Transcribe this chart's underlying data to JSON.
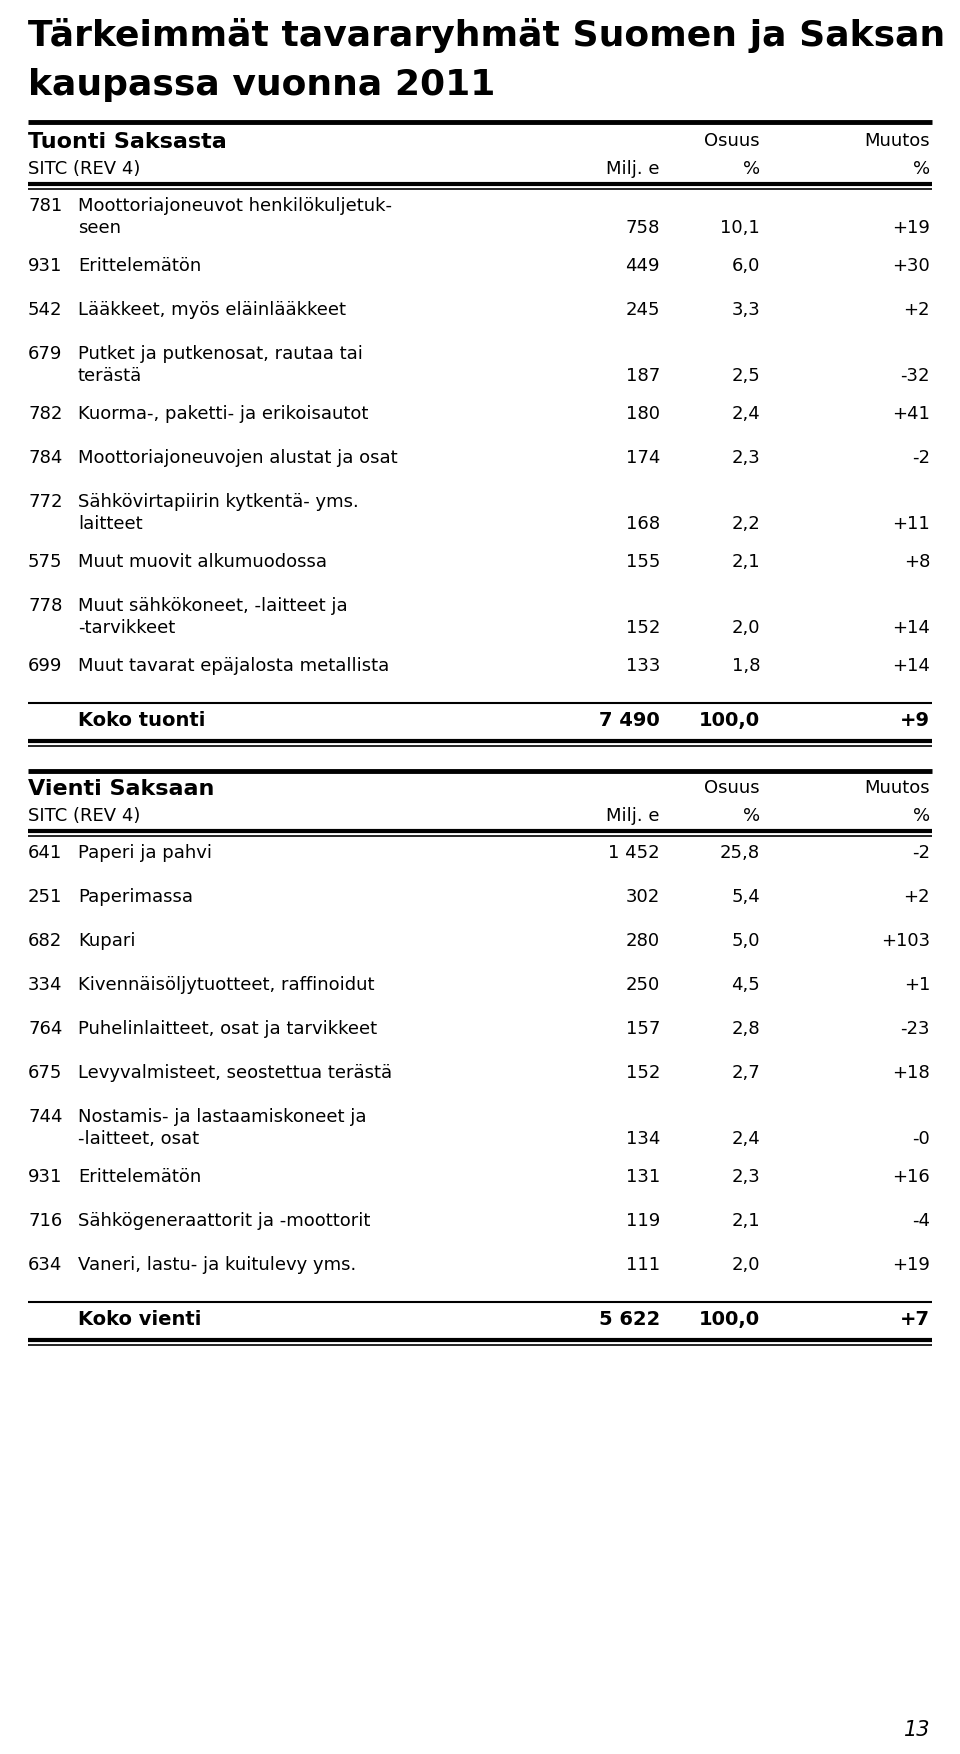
{
  "title_line1": "Tärkeimmät tavararyhmät Suomen ja Saksan",
  "title_line2": "kaupassa vuonna 2011",
  "section1_header": "Tuonti Saksasta",
  "section1_subheader": "SITC (REV 4)",
  "import_rows": [
    {
      "code": "781",
      "desc_line1": "Moottoriajoneuvot henkilökuljetuk-",
      "desc_line2": "seen",
      "val": "758",
      "pct": "10,1",
      "chg": "+19"
    },
    {
      "code": "931",
      "desc_line1": "Erittelemätön",
      "desc_line2": null,
      "val": "449",
      "pct": "6,0",
      "chg": "+30"
    },
    {
      "code": "542",
      "desc_line1": "Lääkkeet, myös eläinlääkkeet",
      "desc_line2": null,
      "val": "245",
      "pct": "3,3",
      "chg": "+2"
    },
    {
      "code": "679",
      "desc_line1": "Putket ja putkenosat, rautaa tai",
      "desc_line2": "terästä",
      "val": "187",
      "pct": "2,5",
      "chg": "-32"
    },
    {
      "code": "782",
      "desc_line1": "Kuorma-, paketti- ja erikoisautot",
      "desc_line2": null,
      "val": "180",
      "pct": "2,4",
      "chg": "+41"
    },
    {
      "code": "784",
      "desc_line1": "Moottoriajoneuvojen alustat ja osat",
      "desc_line2": null,
      "val": "174",
      "pct": "2,3",
      "chg": "-2"
    },
    {
      "code": "772",
      "desc_line1": "Sähkövirtapiirin kytkentä- yms.",
      "desc_line2": "laitteet",
      "val": "168",
      "pct": "2,2",
      "chg": "+11"
    },
    {
      "code": "575",
      "desc_line1": "Muut muovit alkumuodossa",
      "desc_line2": null,
      "val": "155",
      "pct": "2,1",
      "chg": "+8"
    },
    {
      "code": "778",
      "desc_line1": "Muut sähkökoneet, -laitteet ja",
      "desc_line2": "-tarvikkeet",
      "val": "152",
      "pct": "2,0",
      "chg": "+14"
    },
    {
      "code": "699",
      "desc_line1": "Muut tavarat epäjalosta metallista",
      "desc_line2": null,
      "val": "133",
      "pct": "1,8",
      "chg": "+14"
    }
  ],
  "import_total_label": "Koko tuonti",
  "import_total_val": "7 490",
  "import_total_pct": "100,0",
  "import_total_chg": "+9",
  "section2_header": "Vienti Saksaan",
  "section2_subheader": "SITC (REV 4)",
  "export_rows": [
    {
      "code": "641",
      "desc_line1": "Paperi ja pahvi",
      "desc_line2": null,
      "val": "1 452",
      "pct": "25,8",
      "chg": "-2"
    },
    {
      "code": "251",
      "desc_line1": "Paperimassa",
      "desc_line2": null,
      "val": "302",
      "pct": "5,4",
      "chg": "+2"
    },
    {
      "code": "682",
      "desc_line1": "Kupari",
      "desc_line2": null,
      "val": "280",
      "pct": "5,0",
      "chg": "+103"
    },
    {
      "code": "334",
      "desc_line1": "Kivennäisöljytuotteet, raffinoidut",
      "desc_line2": null,
      "val": "250",
      "pct": "4,5",
      "chg": "+1"
    },
    {
      "code": "764",
      "desc_line1": "Puhelinlaitteet, osat ja tarvikkeet",
      "desc_line2": null,
      "val": "157",
      "pct": "2,8",
      "chg": "-23"
    },
    {
      "code": "675",
      "desc_line1": "Levyvalmisteet, seostettua terästä",
      "desc_line2": null,
      "val": "152",
      "pct": "2,7",
      "chg": "+18"
    },
    {
      "code": "744",
      "desc_line1": "Nostamis- ja lastaamiskoneet ja",
      "desc_line2": "-laitteet, osat",
      "val": "134",
      "pct": "2,4",
      "chg": "-0"
    },
    {
      "code": "931",
      "desc_line1": "Erittelemätön",
      "desc_line2": null,
      "val": "131",
      "pct": "2,3",
      "chg": "+16"
    },
    {
      "code": "716",
      "desc_line1": "Sähkögeneraattorit ja -moottorit",
      "desc_line2": null,
      "val": "119",
      "pct": "2,1",
      "chg": "-4"
    },
    {
      "code": "634",
      "desc_line1": "Vaneri, lastu- ja kuitulevy yms.",
      "desc_line2": null,
      "val": "111",
      "pct": "2,0",
      "chg": "+19"
    }
  ],
  "export_total_label": "Koko vienti",
  "export_total_val": "5 622",
  "export_total_pct": "100,0",
  "export_total_chg": "+7",
  "page_number": "13",
  "bg_color": "#ffffff",
  "text_color": "#000000",
  "col_osuus": "Osuus",
  "col_muutos": "Muutos",
  "col_milj": "Milj. e",
  "col_pct": "%",
  "note_col_pct": "%"
}
